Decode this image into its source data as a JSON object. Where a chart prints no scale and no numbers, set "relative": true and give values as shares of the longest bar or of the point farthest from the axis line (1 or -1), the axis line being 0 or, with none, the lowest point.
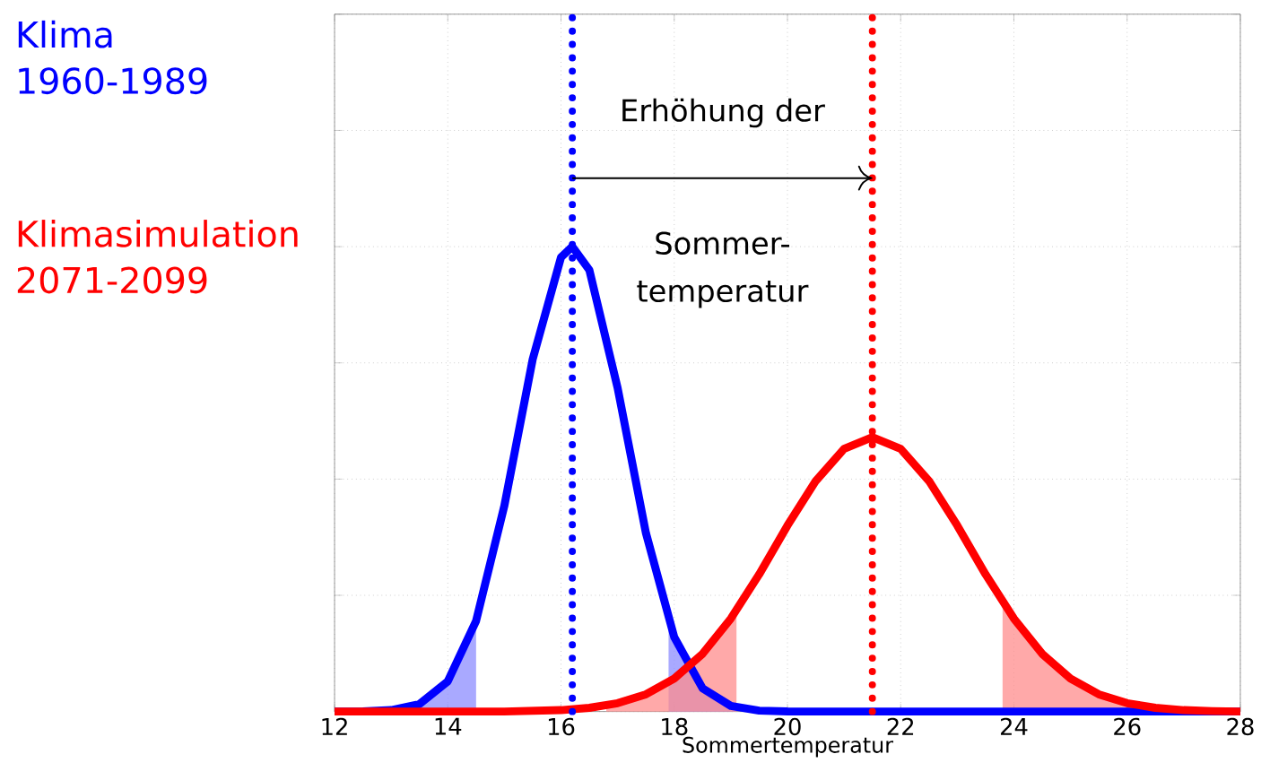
{
  "chart_data": {
    "type": "line",
    "relative": true,
    "xlabel": "Sommertemperatur",
    "xlim": [
      12,
      28
    ],
    "xticks": [
      12,
      14,
      16,
      18,
      20,
      22,
      24,
      26,
      28
    ],
    "grid": true,
    "tick_labels": "x",
    "legend": "left",
    "series": [
      {
        "type": "area",
        "color": "#ff8c8c",
        "x": [
          16.8,
          17,
          17.5,
          18,
          18.5,
          19,
          19.1
        ],
        "values": [
          0.013,
          0.018,
          0.037,
          0.071,
          0.124,
          0.2,
          0.218
        ]
      },
      {
        "type": "area",
        "color": "#ff8c8c",
        "x": [
          23.8,
          24,
          24.5,
          25,
          25.5,
          26,
          26.5,
          27,
          27.5,
          28
        ],
        "values": [
          0.237,
          0.2,
          0.124,
          0.071,
          0.037,
          0.018,
          0.008,
          0.003,
          0.001,
          0
        ]
      },
      {
        "type": "area",
        "color": "#8c8cff",
        "x": [
          12,
          12.5,
          13,
          13.5,
          14,
          14.5
        ],
        "values": [
          0,
          0.0004,
          0.003,
          0.016,
          0.065,
          0.195
        ]
      },
      {
        "type": "area",
        "color": "#8c8cff",
        "x": [
          17.9,
          18,
          18.5,
          19,
          19.1
        ],
        "values": [
          0.195,
          0.16,
          0.05,
          0.012,
          0.0086
        ]
      },
      {
        "name": "Klima 1960-1989",
        "color": "#0000ff",
        "x": [
          12,
          12.5,
          13,
          13.5,
          14,
          14.5,
          15,
          15.5,
          16,
          16.2,
          16.5,
          17,
          17.5,
          18,
          18.5,
          19,
          19.5,
          20,
          21,
          22,
          24,
          26,
          28
        ],
        "values": [
          0,
          0.0004,
          0.003,
          0.016,
          0.065,
          0.195,
          0.443,
          0.758,
          0.977,
          1,
          0.95,
          0.696,
          0.384,
          0.16,
          0.05,
          0.012,
          0.002,
          0.0003,
          0,
          0,
          0,
          0,
          0
        ]
      },
      {
        "name": "Klimasimulation 2071-2099",
        "color": "#ff0000",
        "x": [
          12,
          13,
          14,
          15,
          16,
          16.5,
          17,
          17.5,
          18,
          18.5,
          19,
          19.5,
          20,
          20.5,
          21,
          21.5,
          22,
          22.5,
          23,
          23.5,
          24,
          24.5,
          25,
          25.5,
          26,
          26.5,
          27,
          27.5,
          28
        ],
        "values": [
          0,
          0,
          0,
          0,
          0.003,
          0.008,
          0.018,
          0.037,
          0.071,
          0.124,
          0.2,
          0.295,
          0.4,
          0.496,
          0.565,
          0.59,
          0.565,
          0.496,
          0.4,
          0.295,
          0.2,
          0.124,
          0.071,
          0.037,
          0.018,
          0.008,
          0.003,
          0.001,
          0
        ]
      }
    ],
    "ref_lines": [
      {
        "axis": "x",
        "value": 16.2,
        "color": "#0000ff",
        "line_style": "dotted"
      },
      {
        "axis": "x",
        "value": 21.5,
        "color": "#ff0000",
        "line_style": "dotted"
      }
    ],
    "annotations": [
      "Erhöhung der",
      "Sommer-",
      "temperatur"
    ]
  }
}
